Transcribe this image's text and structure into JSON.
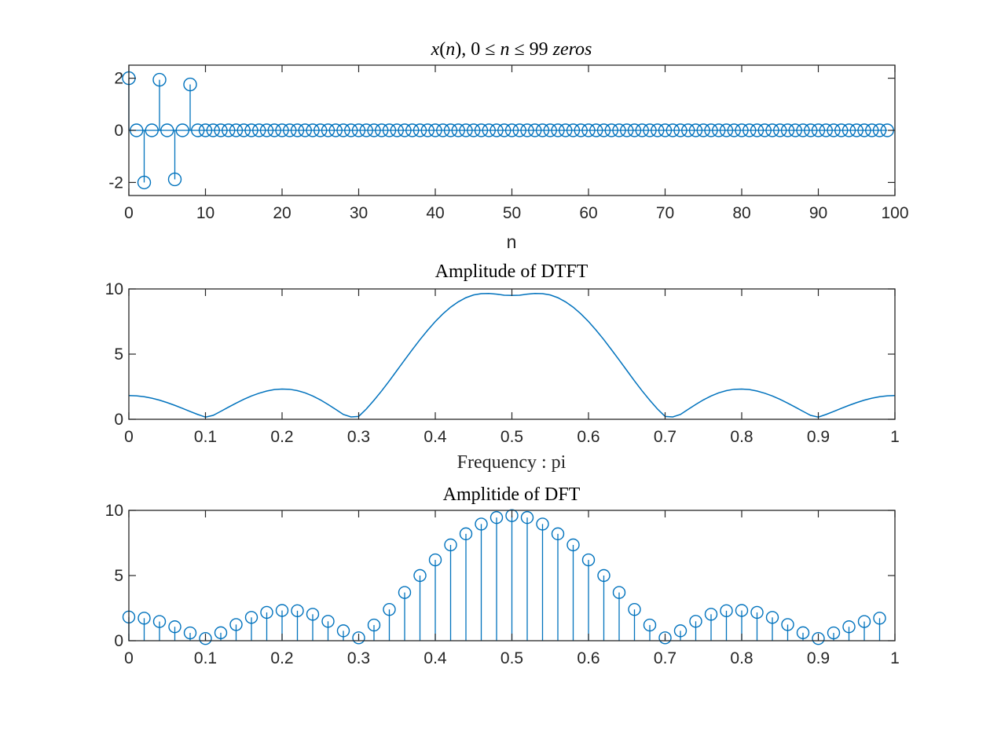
{
  "colors": {
    "series": "#0072BD",
    "axes": "#262626",
    "background": "#FFFFFF"
  },
  "chart_data": [
    {
      "type": "stem",
      "title": "x(n), 0 ≤ n ≤ 99    zeros",
      "xlabel": "n",
      "ylabel": "",
      "xlim": [
        0,
        100
      ],
      "ylim": [
        -2.5,
        2.5
      ],
      "xticks": [
        0,
        10,
        20,
        30,
        40,
        50,
        60,
        70,
        80,
        90,
        100
      ],
      "yticks": [
        -2,
        0,
        2
      ],
      "x": [
        0,
        1,
        2,
        3,
        4,
        5,
        6,
        7,
        8,
        9,
        10,
        11,
        12,
        13,
        14,
        15,
        16,
        17,
        18,
        19,
        20,
        21,
        22,
        23,
        24,
        25,
        26,
        27,
        28,
        29,
        30,
        31,
        32,
        33,
        34,
        35,
        36,
        37,
        38,
        39,
        40,
        41,
        42,
        43,
        44,
        45,
        46,
        47,
        48,
        49,
        50,
        51,
        52,
        53,
        54,
        55,
        56,
        57,
        58,
        59,
        60,
        61,
        62,
        63,
        64,
        65,
        66,
        67,
        68,
        69,
        70,
        71,
        72,
        73,
        74,
        75,
        76,
        77,
        78,
        79,
        80,
        81,
        82,
        83,
        84,
        85,
        86,
        87,
        88,
        89,
        90,
        91,
        92,
        93,
        94,
        95,
        96,
        97,
        98,
        99
      ],
      "y": [
        2,
        0,
        -2,
        0,
        1.94,
        0,
        -1.88,
        0,
        1.76,
        0,
        0,
        0,
        0,
        0,
        0,
        0,
        0,
        0,
        0,
        0,
        0,
        0,
        0,
        0,
        0,
        0,
        0,
        0,
        0,
        0,
        0,
        0,
        0,
        0,
        0,
        0,
        0,
        0,
        0,
        0,
        0,
        0,
        0,
        0,
        0,
        0,
        0,
        0,
        0,
        0,
        0,
        0,
        0,
        0,
        0,
        0,
        0,
        0,
        0,
        0,
        0,
        0,
        0,
        0,
        0,
        0,
        0,
        0,
        0,
        0,
        0,
        0,
        0,
        0,
        0,
        0,
        0,
        0,
        0,
        0,
        0,
        0,
        0,
        0,
        0,
        0,
        0,
        0,
        0,
        0,
        0,
        0,
        0,
        0,
        0,
        0,
        0,
        0,
        0,
        0
      ],
      "grid": false
    },
    {
      "type": "line",
      "title": "Amplitude of DTFT",
      "xlabel": "Frequency : pi",
      "ylabel": "",
      "xlim": [
        0,
        1
      ],
      "ylim": [
        0,
        10
      ],
      "xticks": [
        0,
        0.1,
        0.2,
        0.3,
        0.4,
        0.5,
        0.6,
        0.7,
        0.8,
        0.9,
        1
      ],
      "yticks": [
        0,
        5,
        10
      ],
      "x": [
        0,
        0.01,
        0.02,
        0.03,
        0.04,
        0.05,
        0.06,
        0.07,
        0.08,
        0.09,
        0.1,
        0.11,
        0.12,
        0.13,
        0.14,
        0.15,
        0.16,
        0.17,
        0.18,
        0.19,
        0.2,
        0.21,
        0.22,
        0.23,
        0.24,
        0.25,
        0.26,
        0.27,
        0.28,
        0.29,
        0.3,
        0.31,
        0.32,
        0.33,
        0.34,
        0.35,
        0.36,
        0.37,
        0.38,
        0.39,
        0.4,
        0.41,
        0.42,
        0.43,
        0.44,
        0.45,
        0.46,
        0.47,
        0.48,
        0.49,
        0.5,
        0.51,
        0.52,
        0.53,
        0.54,
        0.55,
        0.56,
        0.57,
        0.58,
        0.59,
        0.6,
        0.61,
        0.62,
        0.63,
        0.64,
        0.65,
        0.66,
        0.67,
        0.68,
        0.69,
        0.7,
        0.71,
        0.72,
        0.73,
        0.74,
        0.75,
        0.76,
        0.77,
        0.78,
        0.79,
        0.8,
        0.81,
        0.82,
        0.83,
        0.84,
        0.85,
        0.86,
        0.87,
        0.88,
        0.89,
        0.9,
        0.91,
        0.92,
        0.93,
        0.94,
        0.95,
        0.96,
        0.97,
        0.98,
        0.99,
        1
      ],
      "y": [
        1.82,
        1.8,
        1.73,
        1.62,
        1.47,
        1.28,
        1.07,
        0.84,
        0.6,
        0.37,
        0.17,
        0.3,
        0.61,
        0.93,
        1.24,
        1.53,
        1.79,
        2.0,
        2.17,
        2.28,
        2.32,
        2.3,
        2.2,
        2.03,
        1.79,
        1.49,
        1.14,
        0.76,
        0.37,
        0.18,
        0.22,
        0.79,
        1.46,
        2.18,
        2.95,
        3.75,
        4.55,
        5.34,
        6.11,
        6.83,
        7.5,
        8.09,
        8.6,
        9.01,
        9.33,
        9.54,
        9.64,
        9.65,
        9.6,
        9.52,
        9.5,
        9.52,
        9.6,
        9.65,
        9.64,
        9.54,
        9.33,
        9.01,
        8.6,
        8.09,
        7.5,
        6.83,
        6.11,
        5.34,
        4.55,
        3.75,
        2.95,
        2.18,
        1.46,
        0.79,
        0.22,
        0.18,
        0.37,
        0.76,
        1.14,
        1.49,
        1.79,
        2.03,
        2.2,
        2.3,
        2.32,
        2.28,
        2.17,
        2.0,
        1.79,
        1.53,
        1.24,
        0.93,
        0.61,
        0.3,
        0.17,
        0.37,
        0.6,
        0.84,
        1.07,
        1.28,
        1.47,
        1.62,
        1.73,
        1.8,
        1.82
      ],
      "grid": false
    },
    {
      "type": "stem",
      "title": "Amplitide of DFT",
      "xlabel": "",
      "ylabel": "",
      "xlim": [
        0,
        1
      ],
      "ylim": [
        0,
        10
      ],
      "xticks": [
        0,
        0.1,
        0.2,
        0.3,
        0.4,
        0.5,
        0.6,
        0.7,
        0.8,
        0.9,
        1
      ],
      "yticks": [
        0,
        5,
        10
      ],
      "x": [
        0,
        0.02,
        0.04,
        0.06,
        0.08,
        0.1,
        0.12,
        0.14,
        0.16,
        0.18,
        0.2,
        0.22,
        0.24,
        0.26,
        0.28,
        0.3,
        0.32,
        0.34,
        0.36,
        0.38,
        0.4,
        0.42,
        0.44,
        0.46,
        0.48,
        0.5,
        0.52,
        0.54,
        0.56,
        0.58,
        0.6,
        0.62,
        0.64,
        0.66,
        0.68,
        0.7,
        0.72,
        0.74,
        0.76,
        0.78,
        0.8,
        0.82,
        0.84,
        0.86,
        0.88,
        0.9,
        0.92,
        0.94,
        0.96,
        0.98
      ],
      "y": [
        1.82,
        1.73,
        1.47,
        1.07,
        0.6,
        0.17,
        0.61,
        1.24,
        1.79,
        2.17,
        2.32,
        2.3,
        2.03,
        1.49,
        0.76,
        0.22,
        1.2,
        2.4,
        3.7,
        5.0,
        6.2,
        7.35,
        8.2,
        8.95,
        9.45,
        9.6,
        9.45,
        8.95,
        8.2,
        7.35,
        6.2,
        5.0,
        3.7,
        2.4,
        1.2,
        0.22,
        0.76,
        1.49,
        2.03,
        2.3,
        2.32,
        2.17,
        1.79,
        1.24,
        0.61,
        0.17,
        0.6,
        1.07,
        1.47,
        1.73
      ],
      "grid": false
    }
  ]
}
